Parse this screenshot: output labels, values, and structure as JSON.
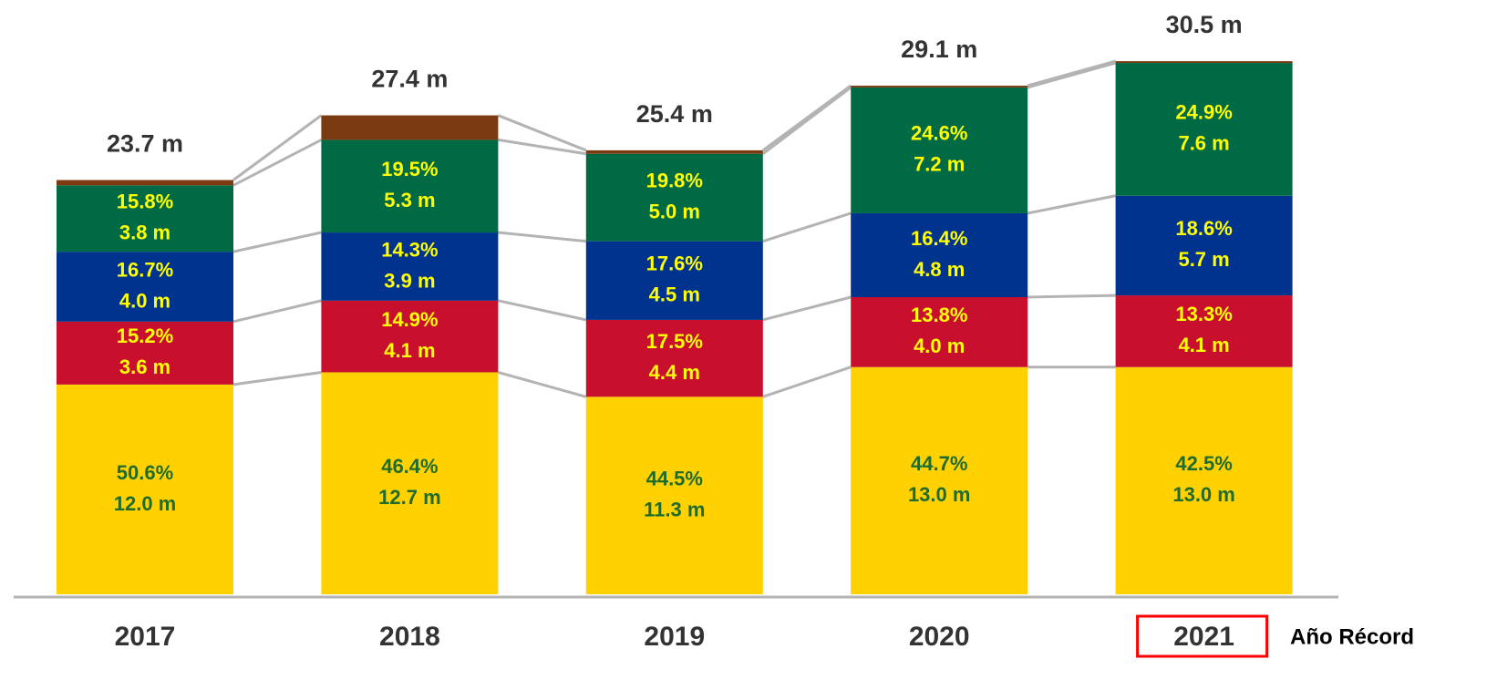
{
  "chart_data": {
    "type": "stacked_bar",
    "categories": [
      "2017",
      "2018",
      "2019",
      "2020",
      "2021"
    ],
    "ylim": [
      0,
      34
    ],
    "series": [
      {
        "color": "#ffd100",
        "label_color": "#1e6b2a",
        "values": [
          12.0,
          12.7,
          11.3,
          13.0,
          13.0
        ],
        "value_labels": [
          "12.0 m",
          "12.7 m",
          "11.3 m",
          "13.0 m",
          "13.0 m"
        ],
        "percent_labels": [
          "50.6%",
          "46.4%",
          "44.5%",
          "44.7%",
          "42.5%"
        ]
      },
      {
        "color": "#c8102e",
        "label_color": "#ffff00",
        "values": [
          3.6,
          4.1,
          4.4,
          4.0,
          4.1
        ],
        "value_labels": [
          "3.6 m",
          "4.1 m",
          "4.4 m",
          "4.0 m",
          "4.1 m"
        ],
        "percent_labels": [
          "15.2%",
          "14.9%",
          "17.5%",
          "13.8%",
          "13.3%"
        ]
      },
      {
        "color": "#00338d",
        "label_color": "#ffff00",
        "values": [
          4.0,
          3.9,
          4.5,
          4.8,
          5.7
        ],
        "value_labels": [
          "4.0 m",
          "3.9 m",
          "4.5 m",
          "4.8 m",
          "5.7 m"
        ],
        "percent_labels": [
          "16.7%",
          "14.3%",
          "17.6%",
          "16.4%",
          "18.6%"
        ]
      },
      {
        "color": "#006a45",
        "label_color": "#ffff00",
        "values": [
          3.8,
          5.3,
          5.0,
          7.2,
          7.6
        ],
        "value_labels": [
          "3.8 m",
          "5.3 m",
          "5.0 m",
          "7.2 m",
          "7.6 m"
        ],
        "percent_labels": [
          "15.8%",
          "19.5%",
          "19.8%",
          "24.6%",
          "24.9%"
        ]
      },
      {
        "color": "#7b3a10",
        "values": [
          0.3,
          1.4,
          0.2,
          0.1,
          0.1
        ]
      }
    ],
    "totals": [
      23.7,
      27.4,
      25.4,
      29.1,
      30.5
    ],
    "total_labels": [
      "23.7 m",
      "27.4 m",
      "25.4 m",
      "29.1 m",
      "30.5 m"
    ],
    "annotation": "Año Récord"
  }
}
